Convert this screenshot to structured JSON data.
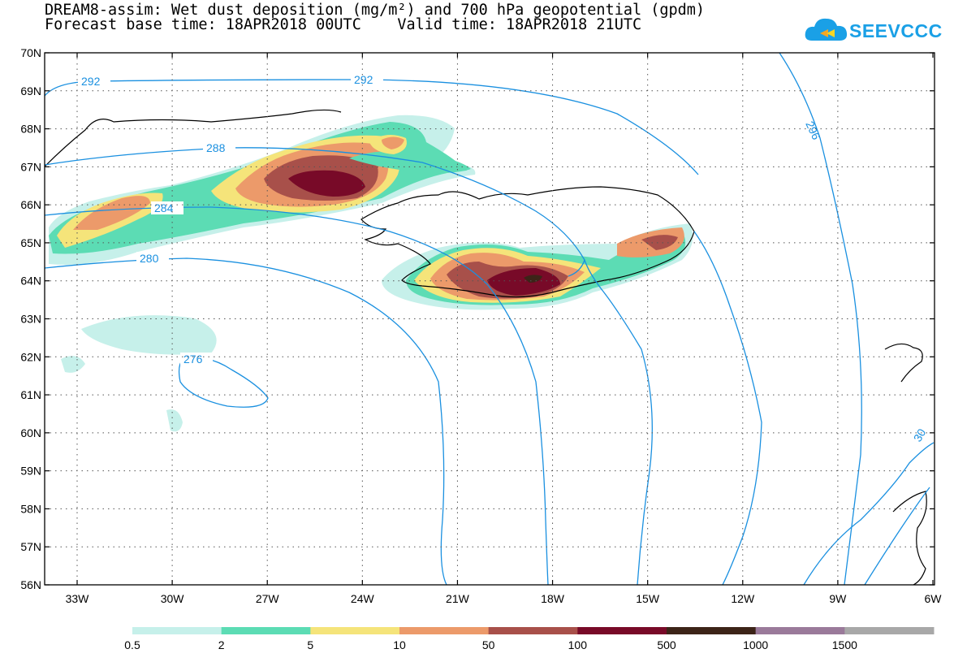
{
  "title": {
    "line1": "DREAM8-assim: Wet dust deposition (mg/m²) and 700 hPa geopotential (gpdm)",
    "line2": "Forecast base time: 18APR2018 00UTC    Valid time: 18APR2018 21UTC"
  },
  "logo": {
    "text": "SEEVCCC",
    "color": "#1aa0e6"
  },
  "axes": {
    "lat_labels": [
      "70N",
      "69N",
      "68N",
      "67N",
      "66N",
      "65N",
      "64N",
      "63N",
      "62N",
      "61N",
      "60N",
      "59N",
      "58N",
      "57N",
      "56N"
    ],
    "lon_labels": [
      "33W",
      "30W",
      "27W",
      "24W",
      "21W",
      "18W",
      "15W",
      "12W",
      "9W",
      "6W"
    ]
  },
  "contours": {
    "color": "#1a90e0",
    "labels": [
      "292",
      "292",
      "288",
      "284",
      "280",
      "276",
      "296",
      "30"
    ]
  },
  "colorbar": {
    "colors": [
      "#c6f0ea",
      "#5cdcb4",
      "#f5e47a",
      "#ec9a6a",
      "#a8504a",
      "#780a28",
      "#3c2418",
      "#9a7a9a",
      "#a8a8a8"
    ],
    "labels": [
      "0.5",
      "2",
      "5",
      "10",
      "50",
      "100",
      "500",
      "1000",
      "1500"
    ]
  }
}
